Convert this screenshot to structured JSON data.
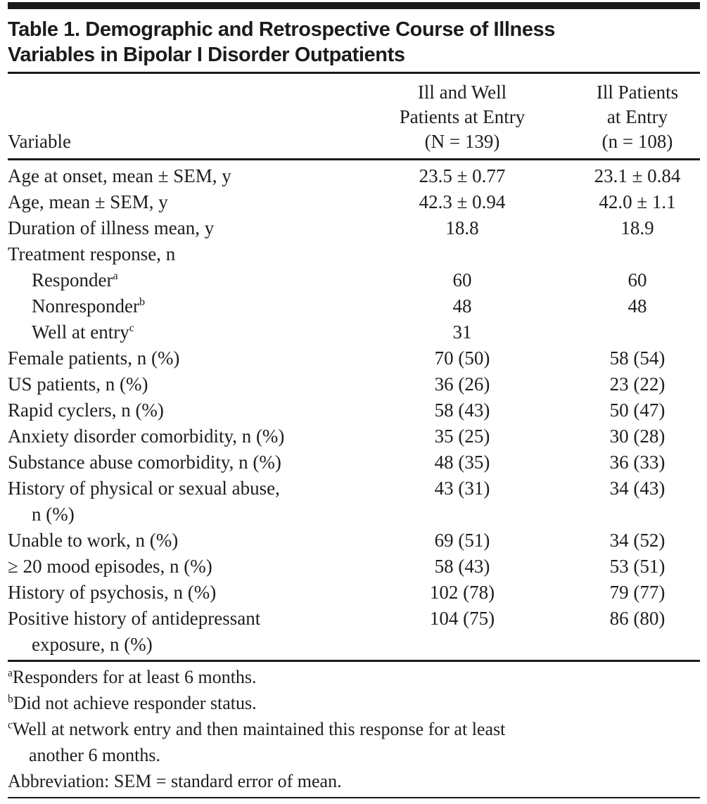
{
  "table": {
    "title_lines": [
      "Table 1. Demographic and Retrospective Course of Illness",
      "Variables in Bipolar I Disorder Outpatients"
    ],
    "header": {
      "variable_label": "Variable",
      "col2_lines": [
        "Ill and Well",
        "Patients at Entry",
        "(N = 139)"
      ],
      "col3_lines": [
        "Ill Patients",
        "at Entry",
        "(n = 108)"
      ]
    },
    "rows": [
      {
        "label": "Age at onset, mean ± SEM, y",
        "v1": "23.5 ± 0.77",
        "v2": "23.1 ± 0.84"
      },
      {
        "label": "Age, mean ± SEM, y",
        "v1": "42.3 ± 0.94",
        "v2": "42.0 ± 1.1"
      },
      {
        "label": "Duration of illness mean, y",
        "v1": "18.8",
        "v2": "18.9"
      },
      {
        "label": "Treatment response, n",
        "v1": "",
        "v2": ""
      },
      {
        "label": "Responder",
        "sup": "a",
        "indent": true,
        "v1": "60",
        "v2": "60"
      },
      {
        "label": "Nonresponder",
        "sup": "b",
        "indent": true,
        "v1": "48",
        "v2": "48"
      },
      {
        "label": "Well at entry",
        "sup": "c",
        "indent": true,
        "v1": "31",
        "v2": ""
      },
      {
        "label": "Female patients, n (%)",
        "v1": "70 (50)",
        "v2": "58 (54)"
      },
      {
        "label": "US patients, n (%)",
        "v1": "36 (26)",
        "v2": "23 (22)"
      },
      {
        "label": "Rapid cyclers, n (%)",
        "v1": "58 (43)",
        "v2": "50 (47)"
      },
      {
        "label": "Anxiety disorder comorbidity, n (%)",
        "v1": "35 (25)",
        "v2": "30 (28)"
      },
      {
        "label": "Substance abuse comorbidity, n (%)",
        "v1": "48 (35)",
        "v2": "36 (33)"
      },
      {
        "label": "History of physical or sexual abuse,",
        "label2": "n (%)",
        "v1": "43 (31)",
        "v2": "34 (43)"
      },
      {
        "label": "Unable to work, n (%)",
        "v1": "69 (51)",
        "v2": "34 (52)"
      },
      {
        "label": "≥ 20 mood episodes, n (%)",
        "v1": "58 (43)",
        "v2": "53 (51)"
      },
      {
        "label": "History of psychosis, n (%)",
        "v1": "102 (78)",
        "v2": "79 (77)"
      },
      {
        "label": "Positive history of antidepressant",
        "label2": "exposure, n (%)",
        "v1": "104 (75)",
        "v2": "86 (80)"
      }
    ],
    "footnotes": [
      {
        "sup": "a",
        "text": "Responders for at least 6 months."
      },
      {
        "sup": "b",
        "text": "Did not achieve responder status."
      },
      {
        "sup": "c",
        "text": "Well at network entry and then maintained this response for at least",
        "text2": "another 6 months."
      },
      {
        "sup": "",
        "text": "Abbreviation: SEM = standard error of mean."
      }
    ],
    "colors": {
      "text": "#1e1e1e",
      "rule": "#1a1a1a",
      "background": "#ffffff"
    }
  }
}
